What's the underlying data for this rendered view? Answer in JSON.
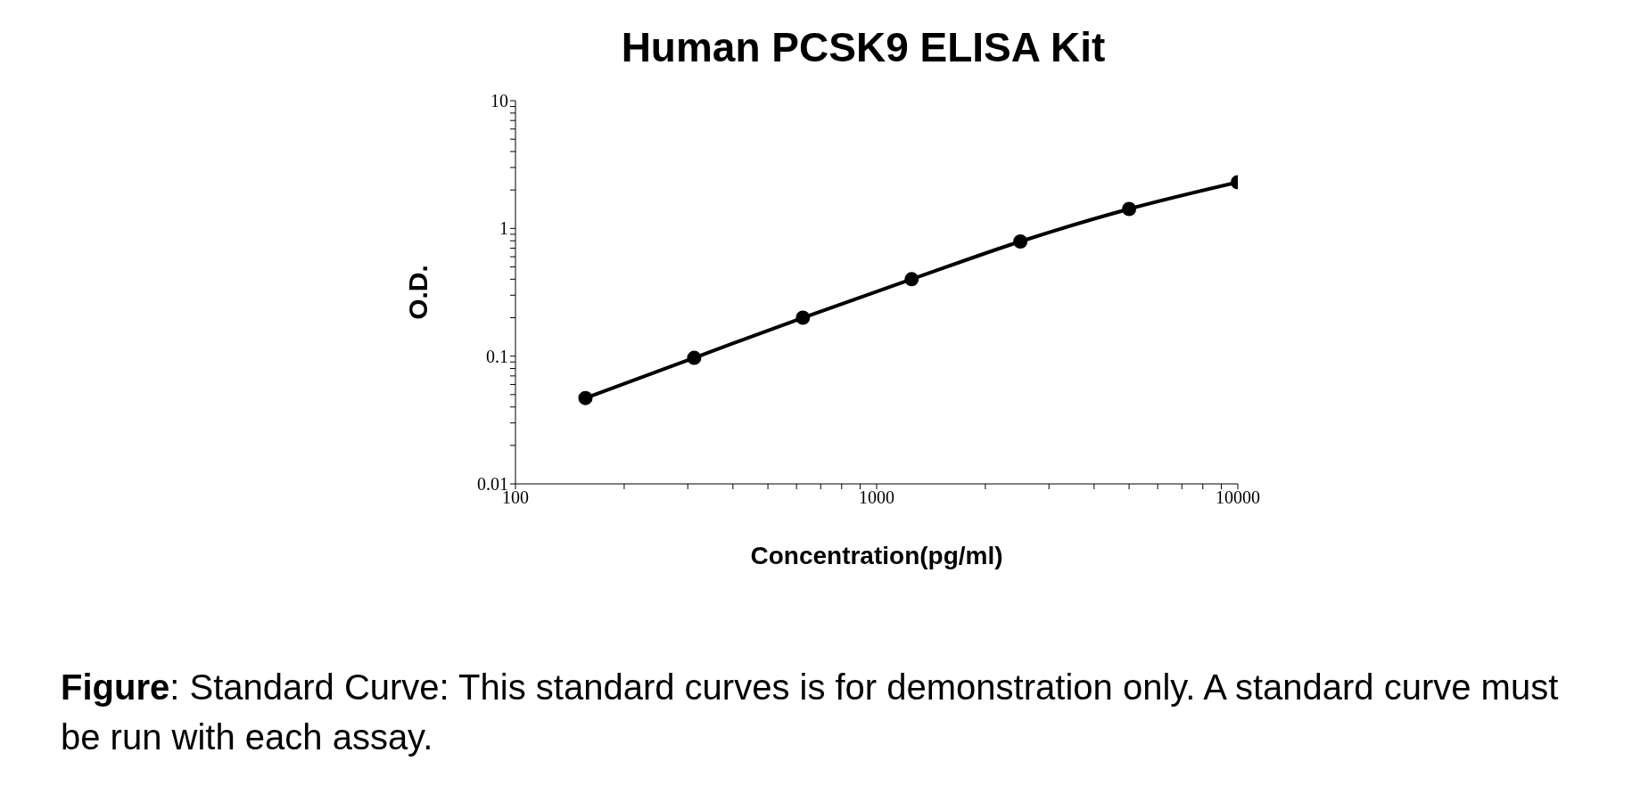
{
  "chart_data": {
    "type": "line",
    "title": "Human PCSK9 ELISA Kit",
    "xlabel": "Concentration(pg/ml)",
    "ylabel": "O.D.",
    "annotations": [
      "Figure: Standard Curve: This standard curves is for demonstration only. A standard curve must be run with each assay."
    ],
    "x": [
      156.25,
      312.5,
      625,
      1250,
      2500,
      5000,
      10000
    ],
    "series": [
      {
        "color": "#000000",
        "values": [
          0.047,
          0.097,
          0.2,
          0.4,
          0.79,
          1.42,
          2.3
        ]
      }
    ],
    "log": "xy",
    "xlim": [
      100,
      10000
    ],
    "ylim": [
      0.01,
      10
    ],
    "xticks": [
      100,
      {
        "value": 200,
        "label": null
      },
      {
        "value": 300,
        "label": null
      },
      {
        "value": 400,
        "label": null
      },
      {
        "value": 500,
        "label": null
      },
      {
        "value": 600,
        "label": null
      },
      {
        "value": 700,
        "label": null
      },
      {
        "value": 800,
        "label": null
      },
      {
        "value": 900,
        "label": null
      },
      1000,
      {
        "value": 2000,
        "label": null
      },
      {
        "value": 3000,
        "label": null
      },
      {
        "value": 4000,
        "label": null
      },
      {
        "value": 5000,
        "label": null
      },
      {
        "value": 6000,
        "label": null
      },
      {
        "value": 7000,
        "label": null
      },
      {
        "value": 8000,
        "label": null
      },
      {
        "value": 9000,
        "label": null
      },
      10000
    ],
    "yticks": [
      0.01,
      {
        "value": 0.02,
        "label": null
      },
      {
        "value": 0.03,
        "label": null
      },
      {
        "value": 0.04,
        "label": null
      },
      {
        "value": 0.05,
        "label": null
      },
      {
        "value": 0.06,
        "label": null
      },
      {
        "value": 0.07,
        "label": null
      },
      {
        "value": 0.08,
        "label": null
      },
      {
        "value": 0.09,
        "label": null
      },
      0.1,
      {
        "value": 0.2,
        "label": null
      },
      {
        "value": 0.3,
        "label": null
      },
      {
        "value": 0.4,
        "label": null
      },
      {
        "value": 0.5,
        "label": null
      },
      {
        "value": 0.6,
        "label": null
      },
      {
        "value": 0.7,
        "label": null
      },
      {
        "value": 0.8,
        "label": null
      },
      {
        "value": 0.9,
        "label": null
      },
      1,
      {
        "value": 2,
        "label": null
      },
      {
        "value": 3,
        "label": null
      },
      {
        "value": 4,
        "label": null
      },
      {
        "value": 5,
        "label": null
      },
      {
        "value": 6,
        "label": null
      },
      {
        "value": 7,
        "label": null
      },
      {
        "value": 8,
        "label": null
      },
      {
        "value": 9,
        "label": null
      },
      10
    ],
    "grid": false,
    "legend": false,
    "marker": "circle",
    "line_style": "solid"
  }
}
